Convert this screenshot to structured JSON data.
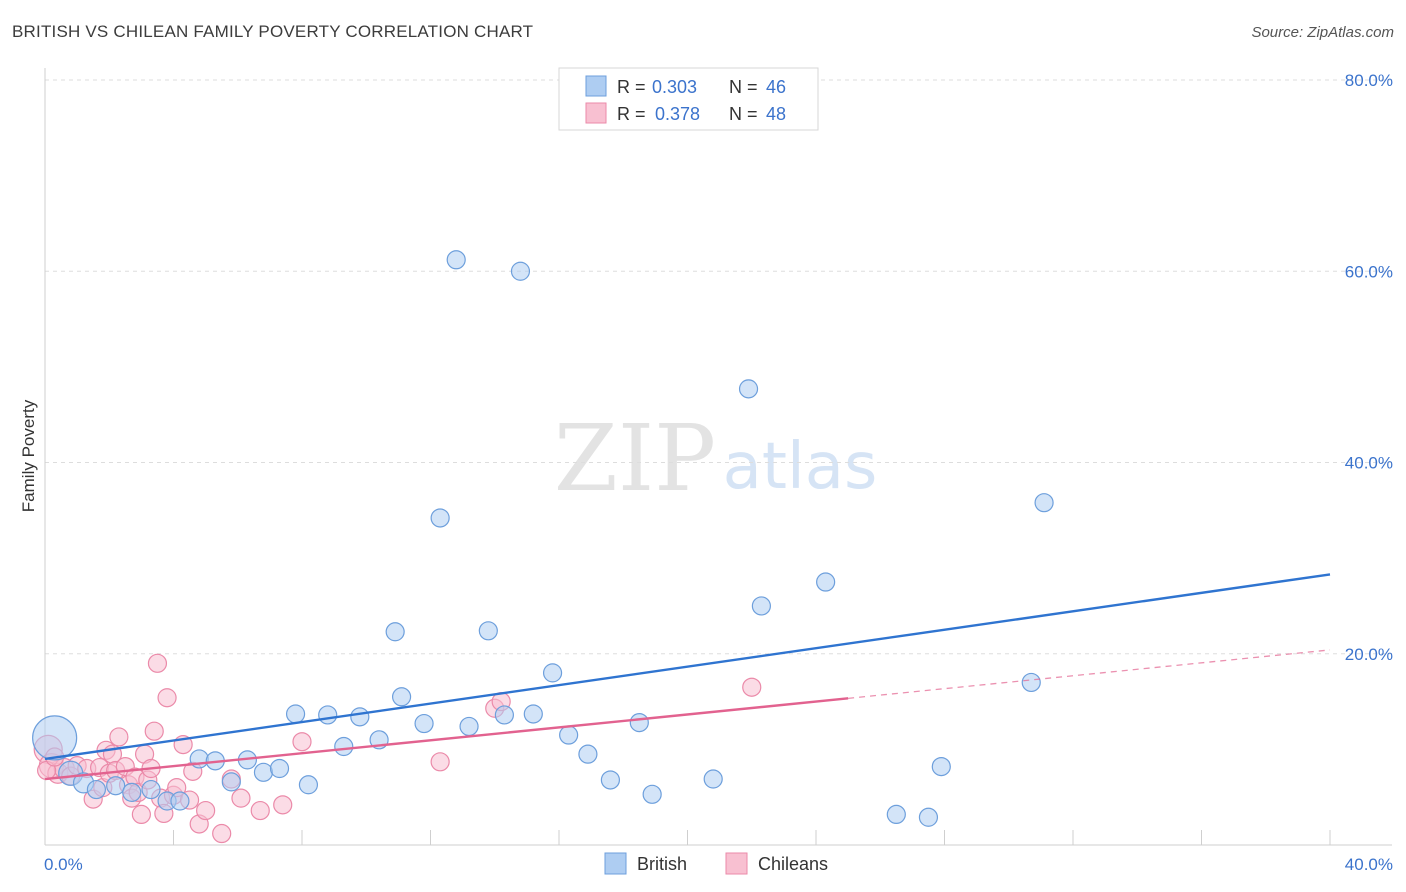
{
  "title": "BRITISH VS CHILEAN FAMILY POVERTY CORRELATION CHART",
  "source": "Source: ZipAtlas.com",
  "watermark": {
    "zip": "ZIP",
    "atlas": "atlas"
  },
  "stats": [
    {
      "r_label": "R =",
      "r_value": "0.303",
      "n_label": "N =",
      "n_value": "46"
    },
    {
      "r_label": "R =",
      "r_value": "0.378",
      "n_label": "N =",
      "n_value": "48"
    }
  ],
  "colors": {
    "british_fill": "#aecdf2",
    "british_stroke": "#6d9fdc",
    "british_line": "#2f74d0",
    "chilean_fill": "#f8c0d1",
    "chilean_stroke": "#eb8aa9",
    "chilean_line": "#e2628f",
    "tick_text": "#3b73cc",
    "grid": "#dddddd"
  },
  "chart_data": {
    "type": "scatter",
    "xlabel": "",
    "ylabel": "Family Poverty",
    "xlim": [
      0,
      40
    ],
    "ylim": [
      0,
      80
    ],
    "x_tick_labels": [
      "0.0%",
      "40.0%"
    ],
    "y_ticks": [
      20,
      40,
      60,
      80
    ],
    "y_tick_labels": [
      "20.0%",
      "40.0%",
      "60.0%",
      "80.0%"
    ],
    "grid": true,
    "legend": "bottom-center",
    "series": [
      {
        "name": "British",
        "r": 0.303,
        "n": 46,
        "trend": {
          "x0": 0,
          "y0": 9.0,
          "x1": 40,
          "y1": 28.3,
          "dashed_from": null
        },
        "points": [
          [
            0.3,
            11.2,
            22
          ],
          [
            0.8,
            7.5,
            12
          ],
          [
            1.2,
            6.5,
            10
          ],
          [
            1.6,
            5.8,
            9
          ],
          [
            2.2,
            6.2,
            9
          ],
          [
            2.7,
            5.5,
            9
          ],
          [
            3.3,
            5.8,
            9
          ],
          [
            3.8,
            4.6,
            9
          ],
          [
            4.2,
            4.6,
            9
          ],
          [
            4.8,
            9.0,
            9
          ],
          [
            5.3,
            8.8,
            9
          ],
          [
            5.8,
            6.6,
            9
          ],
          [
            6.3,
            8.9,
            9
          ],
          [
            6.8,
            7.6,
            9
          ],
          [
            7.3,
            8.0,
            9
          ],
          [
            7.8,
            13.7,
            9
          ],
          [
            8.2,
            6.3,
            9
          ],
          [
            8.8,
            13.6,
            9
          ],
          [
            9.3,
            10.3,
            9
          ],
          [
            9.8,
            13.4,
            9
          ],
          [
            10.4,
            11.0,
            9
          ],
          [
            10.9,
            22.3,
            9
          ],
          [
            11.1,
            15.5,
            9
          ],
          [
            11.8,
            12.7,
            9
          ],
          [
            12.3,
            34.2,
            9
          ],
          [
            12.8,
            61.2,
            9
          ],
          [
            13.2,
            12.4,
            9
          ],
          [
            13.8,
            22.4,
            9
          ],
          [
            14.3,
            13.6,
            9
          ],
          [
            14.8,
            60.0,
            9
          ],
          [
            15.2,
            13.7,
            9
          ],
          [
            15.8,
            18.0,
            9
          ],
          [
            16.3,
            11.5,
            9
          ],
          [
            16.9,
            9.5,
            9
          ],
          [
            17.6,
            6.8,
            9
          ],
          [
            18.5,
            12.8,
            9
          ],
          [
            18.9,
            5.3,
            9
          ],
          [
            20.8,
            6.9,
            9
          ],
          [
            21.9,
            47.7,
            9
          ],
          [
            22.3,
            25.0,
            9
          ],
          [
            24.3,
            27.5,
            9
          ],
          [
            26.5,
            3.2,
            9
          ],
          [
            27.5,
            2.9,
            9
          ],
          [
            27.9,
            8.2,
            9
          ],
          [
            30.7,
            17.0,
            9
          ],
          [
            31.1,
            35.8,
            9
          ]
        ]
      },
      {
        "name": "Chileans",
        "r": 0.378,
        "n": 48,
        "trend": {
          "x0": 0,
          "y0": 6.9,
          "x1": 40,
          "y1": 20.4,
          "dashed_from": 25
        },
        "points": [
          [
            0.1,
            10.0,
            14
          ],
          [
            0.2,
            8.3,
            12
          ],
          [
            0.4,
            7.5,
            10
          ],
          [
            0.6,
            8.0,
            10
          ],
          [
            0.8,
            7.2,
            9
          ],
          [
            1.0,
            8.3,
            9
          ],
          [
            1.3,
            8.0,
            9
          ],
          [
            1.5,
            4.8,
            9
          ],
          [
            1.7,
            8.1,
            9
          ],
          [
            1.8,
            6.0,
            9
          ],
          [
            1.9,
            9.9,
            9
          ],
          [
            2.0,
            7.5,
            9
          ],
          [
            2.1,
            9.5,
            9
          ],
          [
            2.2,
            7.8,
            9
          ],
          [
            2.3,
            11.3,
            9
          ],
          [
            2.5,
            8.2,
            9
          ],
          [
            2.6,
            6.3,
            9
          ],
          [
            2.7,
            4.9,
            9
          ],
          [
            2.8,
            7.1,
            9
          ],
          [
            2.9,
            5.5,
            9
          ],
          [
            3.0,
            3.2,
            9
          ],
          [
            3.1,
            9.5,
            9
          ],
          [
            3.2,
            6.8,
            9
          ],
          [
            3.3,
            8.0,
            9
          ],
          [
            3.4,
            11.9,
            9
          ],
          [
            3.5,
            19.0,
            9
          ],
          [
            3.6,
            4.9,
            9
          ],
          [
            3.7,
            3.3,
            9
          ],
          [
            3.8,
            15.4,
            9
          ],
          [
            4.0,
            5.2,
            9
          ],
          [
            4.1,
            6.0,
            9
          ],
          [
            4.3,
            10.5,
            9
          ],
          [
            4.5,
            4.7,
            9
          ],
          [
            4.6,
            7.7,
            9
          ],
          [
            4.8,
            2.2,
            9
          ],
          [
            5.0,
            3.6,
            9
          ],
          [
            5.5,
            1.2,
            9
          ],
          [
            5.8,
            6.9,
            9
          ],
          [
            6.1,
            4.9,
            9
          ],
          [
            6.7,
            3.6,
            9
          ],
          [
            7.4,
            4.2,
            9
          ],
          [
            8.0,
            10.8,
            9
          ],
          [
            12.3,
            8.7,
            9
          ],
          [
            14.0,
            14.3,
            9
          ],
          [
            14.2,
            15.0,
            9
          ],
          [
            22.0,
            16.5,
            9
          ],
          [
            0.05,
            7.8,
            9
          ],
          [
            0.3,
            9.2,
            9
          ]
        ]
      }
    ]
  }
}
